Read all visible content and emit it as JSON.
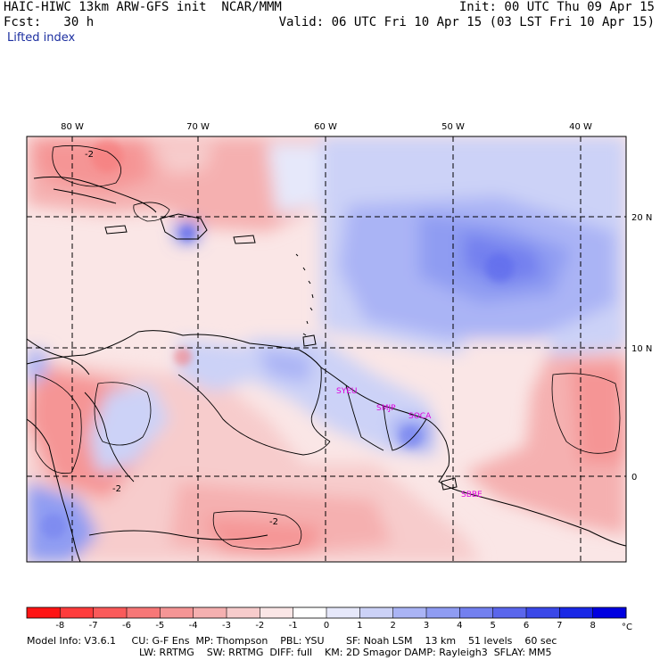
{
  "header": {
    "title_left": "HAIC-HIWC 13km ARW-GFS init  NCAR/MMM",
    "init_right": "Init: 00 UTC Thu 09 Apr 15",
    "fcst_left": "Fcst:   30 h",
    "valid_right": "Valid: 06 UTC Fri 10 Apr 15 (03 LST Fri 10 Apr 15)",
    "field_name": "Lifted index"
  },
  "map": {
    "lon_labels": [
      "80 W",
      "70 W",
      "60 W",
      "50 W",
      "40 W"
    ],
    "lat_labels": [
      "20 N",
      "10 N",
      "0"
    ],
    "stations": [
      "SYEU",
      "SMJP",
      "SOCA",
      "SBBE"
    ],
    "contour_labels": [
      "-2",
      "-2",
      "-2"
    ]
  },
  "colorbar": {
    "ticks": [
      "-8",
      "-7",
      "-6",
      "-5",
      "-4",
      "-3",
      "-2",
      "-1",
      "0",
      "1",
      "2",
      "3",
      "4",
      "5",
      "6",
      "7",
      "8"
    ],
    "unit": "°C",
    "colors": [
      "#ff1414",
      "#ff3c3c",
      "#fa5a5a",
      "#f77777",
      "#f59595",
      "#f5b0b0",
      "#f7cccc",
      "#fae6e6",
      "#ffffff",
      "#e6e8fa",
      "#ccd2f7",
      "#aab4f5",
      "#8f9cf2",
      "#7380ef",
      "#5a66ec",
      "#3a48e8",
      "#1a28e6",
      "#0000e0"
    ]
  },
  "model_info": {
    "line1": "Model Info: V3.6.1     CU: G-F Ens  MP: Thompson    PBL: YSU       SF: Noah LSM    13 km    51 levels    60 sec",
    "line2": "LW: RRTMG    SW: RRTMG  DIFF: full    KM: 2D Smagor DAMP: Rayleigh3  SFLAY: MM5"
  }
}
